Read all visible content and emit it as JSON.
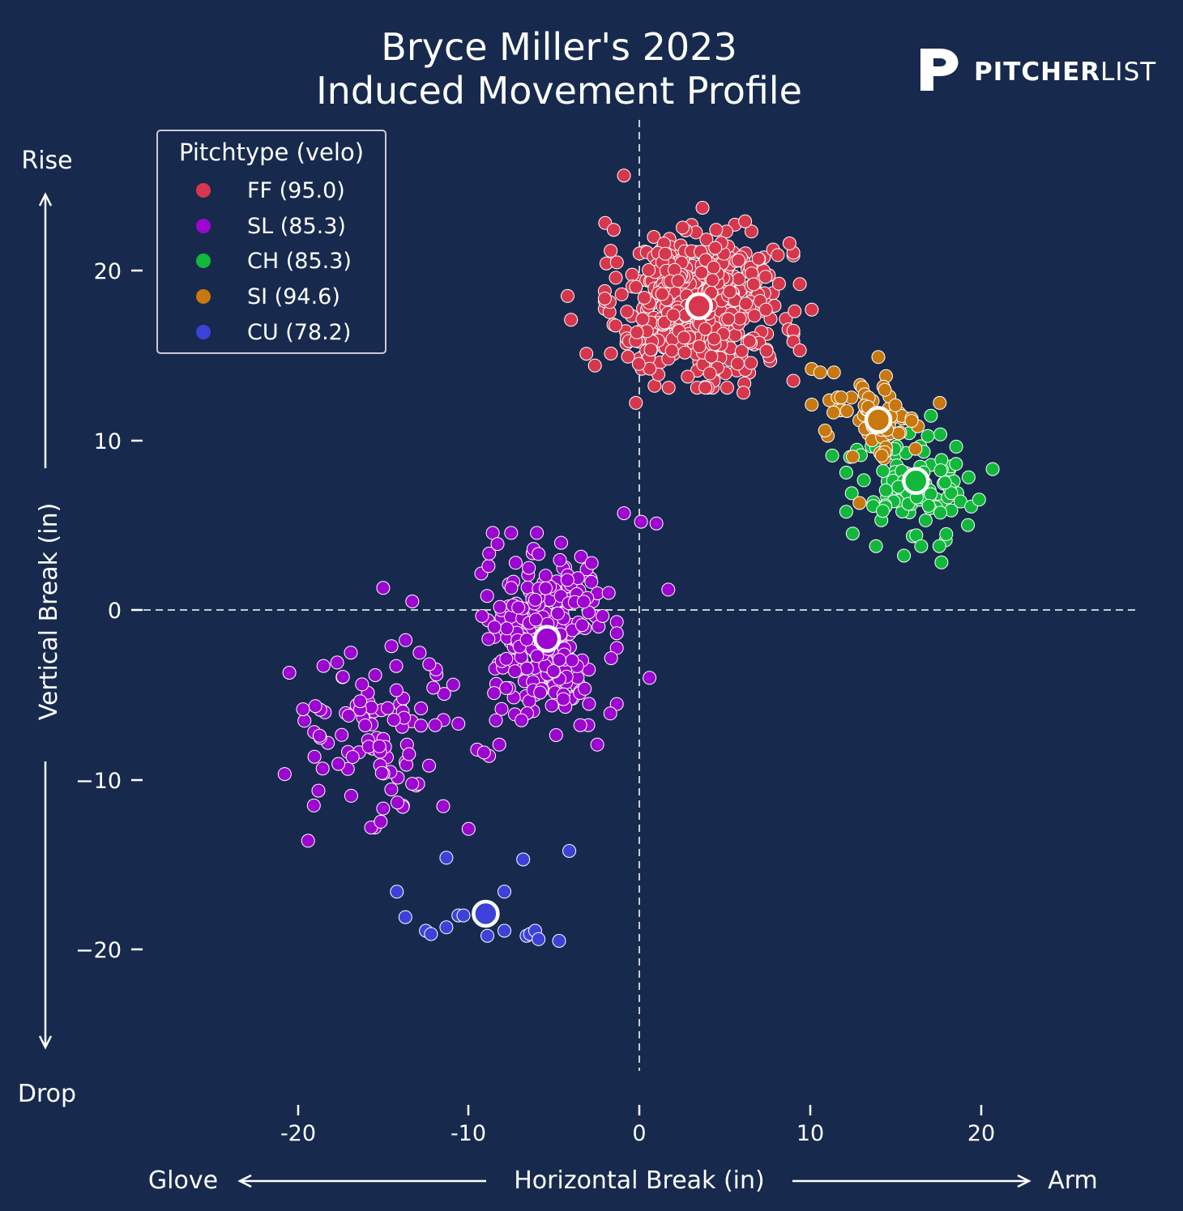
{
  "brand": {
    "name_bold": "PITCHER",
    "name_light": "LIST",
    "logo": "pitcherlist-p-logo"
  },
  "colors": {
    "background": "#172a4e",
    "text": "#ffffff",
    "axis": "#ffffff",
    "guide": "#c7cbd6",
    "FF": "#d7374d",
    "SL": "#9c06d0",
    "CH": "#12b83c",
    "SI": "#c8780f",
    "CU": "#3c42d8"
  },
  "chart_data": {
    "type": "scatter",
    "title": "Bryce Miller's 2023",
    "subtitle": "Induced Movement Profile",
    "xlabel": "Horizontal Break (in)",
    "ylabel": "Vertical Break (in)",
    "x_direction_labels": {
      "left": "Glove",
      "right": "Arm"
    },
    "y_direction_labels": {
      "top": "Rise",
      "bottom": "Drop"
    },
    "xlim": [
      -29,
      29
    ],
    "ylim": [
      -29,
      29
    ],
    "x_ticks": [
      -20,
      -10,
      0,
      10,
      20
    ],
    "x_tick_labels": [
      "-20",
      "-10",
      "0",
      "10",
      "20"
    ],
    "y_ticks": [
      20,
      10,
      0,
      -10,
      -20
    ],
    "y_tick_labels": [
      "20",
      "10",
      "0",
      "−10",
      "−20"
    ],
    "grid": false,
    "reference_lines": {
      "x": 0,
      "y": 0,
      "style": "dashed"
    },
    "legend": {
      "title": "Pitchtype (velo)",
      "position": "top-left"
    },
    "series": [
      {
        "name": "FF (95.0)",
        "pitch": "FF",
        "velo": 95.0,
        "count": 520,
        "mean": [
          3.5,
          17.9
        ],
        "spread": [
          2.3,
          2.0
        ],
        "outliers": [
          [
            -0.9,
            25.6
          ],
          [
            3.7,
            23.7
          ],
          [
            -2.0,
            22.8
          ],
          [
            -1.5,
            22.4
          ],
          [
            4.5,
            22.4
          ],
          [
            6.2,
            22.9
          ],
          [
            8.8,
            21.6
          ],
          [
            9.4,
            19.2
          ],
          [
            9.1,
            17.6
          ],
          [
            -4.2,
            18.5
          ],
          [
            -4.0,
            17.1
          ],
          [
            -3.1,
            15.1
          ],
          [
            -2.6,
            14.4
          ],
          [
            -0.2,
            12.2
          ],
          [
            6.1,
            12.8
          ],
          [
            9.4,
            15.3
          ],
          [
            10.1,
            17.7
          ]
        ]
      },
      {
        "name": "SL (85.3)",
        "pitch": "SL",
        "velo": 85.3,
        "count": 260,
        "mean": [
          -5.4,
          -1.7
        ],
        "spread": [
          1.7,
          2.6
        ],
        "outliers": [
          [
            -0.9,
            5.7
          ],
          [
            0.1,
            5.2
          ],
          [
            1.0,
            5.1
          ],
          [
            1.7,
            1.2
          ],
          [
            -6.2,
            3.6
          ],
          [
            -5.9,
            3.3
          ],
          [
            -7.5,
            1.3
          ],
          [
            -15.0,
            1.3
          ],
          [
            -13.3,
            0.5
          ],
          [
            -6.1,
            0.6
          ],
          [
            -7.8,
            -4.6
          ],
          [
            -8.4,
            -6.5
          ],
          [
            -6.9,
            -6.5
          ],
          [
            -1.7,
            -6.1
          ],
          [
            0.6,
            -4.0
          ]
        ]
      },
      {
        "name": "SL (85.3)",
        "pitch": "SL",
        "velo": 85.3,
        "count": 95,
        "mean": [
          -15.5,
          -7.3
        ],
        "spread": [
          2.5,
          2.3
        ],
        "outliers": [
          [
            -20.5,
            -3.7
          ],
          [
            -18.5,
            -3.3
          ],
          [
            -17.7,
            -3.1
          ],
          [
            -12.3,
            -3.2
          ],
          [
            -10.9,
            -4.4
          ],
          [
            -19.4,
            -13.6
          ],
          [
            -10.0,
            -12.9
          ],
          [
            -8.8,
            -8.6
          ],
          [
            -9.1,
            -8.4
          ],
          [
            -10.6,
            -6.7
          ],
          [
            -15.0,
            -11.7
          ]
        ]
      },
      {
        "name": "CH (85.3)",
        "pitch": "CH",
        "velo": 85.3,
        "count": 105,
        "mean": [
          16.2,
          7.6
        ],
        "spread": [
          1.7,
          1.6
        ],
        "outliers": [
          [
            12.5,
            4.5
          ],
          [
            15.5,
            3.2
          ],
          [
            17.7,
            2.8
          ],
          [
            20.7,
            8.3
          ],
          [
            19.9,
            6.5
          ],
          [
            11.3,
            9.1
          ]
        ]
      },
      {
        "name": "SI (94.6)",
        "pitch": "SI",
        "velo": 94.6,
        "count": 60,
        "mean": [
          14.0,
          11.2
        ],
        "spread": [
          1.3,
          1.1
        ],
        "outliers": [
          [
            10.1,
            14.2
          ],
          [
            10.6,
            14.0
          ],
          [
            11.4,
            14.0
          ],
          [
            14.0,
            14.9
          ],
          [
            10.1,
            12.1
          ],
          [
            17.6,
            12.2
          ],
          [
            12.9,
            6.3
          ],
          [
            14.2,
            9.1
          ]
        ]
      },
      {
        "name": "CU (78.2)",
        "pitch": "CU",
        "velo": 78.2,
        "count": 0,
        "mean": [
          -9.0,
          -17.9
        ],
        "spread": [
          0,
          0
        ],
        "outliers": [
          [
            -14.2,
            -16.6
          ],
          [
            -13.7,
            -18.1
          ],
          [
            -12.5,
            -18.9
          ],
          [
            -12.2,
            -19.1
          ],
          [
            -11.3,
            -18.7
          ],
          [
            -10.6,
            -18.0
          ],
          [
            -10.3,
            -18.0
          ],
          [
            -11.3,
            -14.6
          ],
          [
            -8.9,
            -19.2
          ],
          [
            -7.9,
            -18.9
          ],
          [
            -7.9,
            -16.6
          ],
          [
            -6.8,
            -14.7
          ],
          [
            -6.6,
            -19.2
          ],
          [
            -6.4,
            -19.1
          ],
          [
            -6.1,
            -18.9
          ],
          [
            -5.9,
            -19.4
          ],
          [
            -4.7,
            -19.5
          ],
          [
            -4.1,
            -14.2
          ]
        ]
      }
    ]
  }
}
